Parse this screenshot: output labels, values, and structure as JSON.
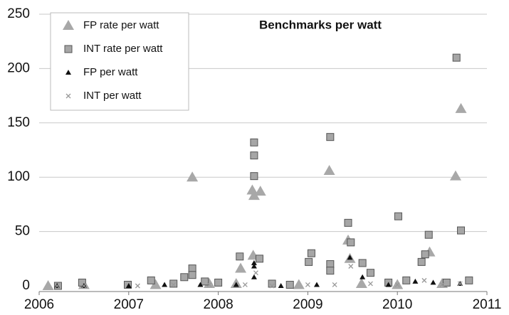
{
  "chart_data": {
    "type": "scatter",
    "title": "Benchmarks per watt",
    "xlim": [
      2006,
      2011
    ],
    "xticks": [
      2006,
      2007,
      2008,
      2009,
      2010,
      2011
    ],
    "ylim": [
      0,
      250
    ],
    "yticks": [
      0,
      50,
      100,
      150,
      200,
      250
    ],
    "grid": true,
    "legend": "upper left",
    "series": [
      {
        "name": "FP rate per watt",
        "color": "#a8a8a8",
        "marker": "triangle",
        "x": [
          2006.1,
          2006.5,
          2007.3,
          2007.71,
          2007.9,
          2008.2,
          2008.25,
          2008.38,
          2008.39,
          2008.4,
          2008.47,
          2008.9,
          2009.24,
          2009.45,
          2009.47,
          2009.6,
          2010.0,
          2010.36,
          2010.5,
          2010.65,
          2010.71
        ],
        "values": [
          0,
          1,
          1,
          100,
          2,
          2,
          16,
          88,
          28,
          83,
          87,
          1,
          106,
          42,
          25,
          2,
          1,
          31,
          2,
          101,
          163
        ]
      },
      {
        "name": "INT rate per watt",
        "color": "#a6a6a6",
        "marker": "square",
        "x": [
          2006.21,
          2006.48,
          2006.99,
          2007.25,
          2007.5,
          2007.62,
          2007.71,
          2007.71,
          2007.85,
          2008.0,
          2008.24,
          2008.4,
          2008.4,
          2008.4,
          2008.46,
          2008.6,
          2008.8,
          2009.01,
          2009.04,
          2009.25,
          2009.25,
          2009.25,
          2009.45,
          2009.48,
          2009.61,
          2009.7,
          2009.9,
          2010.01,
          2010.1,
          2010.27,
          2010.31,
          2010.35,
          2010.55,
          2010.66,
          2010.71,
          2010.8
        ],
        "values": [
          0,
          3,
          1,
          5,
          2,
          8,
          16,
          10,
          4,
          3,
          27,
          132,
          120,
          101,
          25,
          2,
          1,
          22,
          30,
          137,
          20,
          14,
          58,
          40,
          21,
          12,
          3,
          64,
          5,
          22,
          29,
          47,
          3,
          210,
          51,
          5
        ]
      },
      {
        "name": "FP per watt",
        "color": "#111111",
        "marker": "small-triangle",
        "x": [
          2006.2,
          2006.5,
          2007.0,
          2007.4,
          2007.8,
          2008.2,
          2008.4,
          2008.4,
          2008.4,
          2008.7,
          2009.1,
          2009.47,
          2009.61,
          2009.9,
          2010.2,
          2010.4,
          2010.7
        ],
        "values": [
          0,
          0,
          0,
          1,
          1,
          1,
          21,
          18,
          8,
          0,
          1,
          26,
          8,
          1,
          4,
          3,
          2
        ]
      },
      {
        "name": "INT per watt",
        "color": "#999999",
        "marker": "x",
        "x": [
          2006.2,
          2006.5,
          2007.1,
          2007.5,
          2007.9,
          2008.3,
          2008.42,
          2008.6,
          2009.0,
          2009.3,
          2009.48,
          2009.7,
          2010.0,
          2010.3,
          2010.5,
          2010.7
        ],
        "values": [
          0,
          0,
          0,
          1,
          1,
          1,
          12,
          0,
          1,
          1,
          18,
          2,
          1,
          5,
          1,
          2
        ]
      }
    ]
  }
}
